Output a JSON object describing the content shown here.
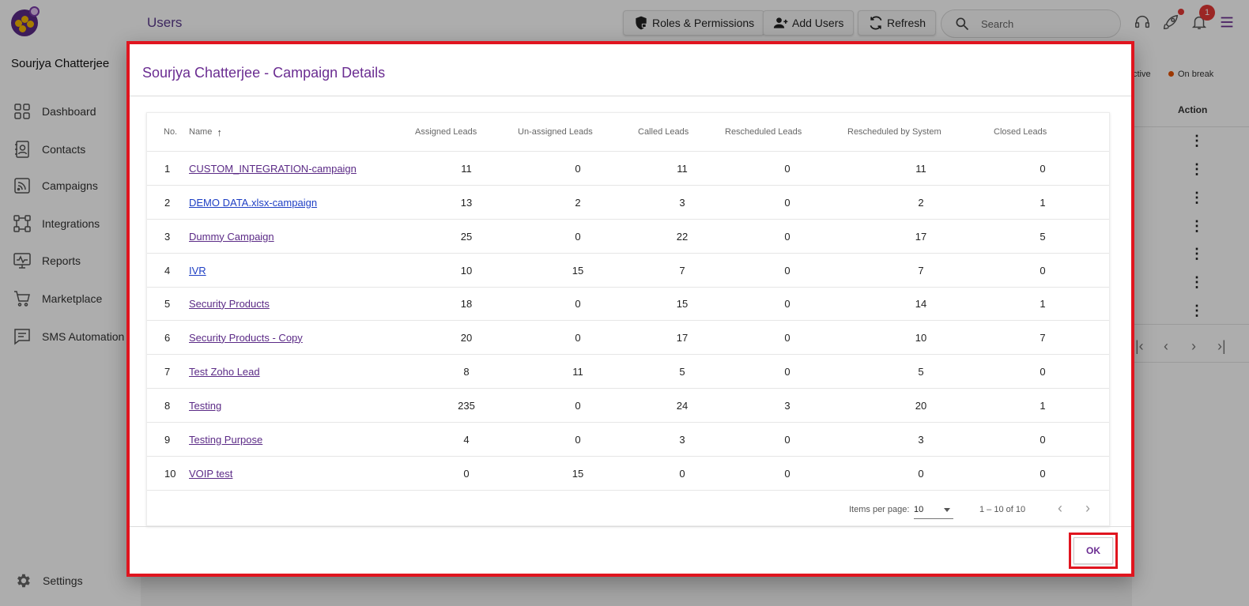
{
  "sidebar": {
    "user_name": "Sourjya Chatterjee",
    "items": [
      {
        "label": "Dashboard",
        "icon": "dashboard-icon"
      },
      {
        "label": "Contacts",
        "icon": "contacts-icon"
      },
      {
        "label": "Campaigns",
        "icon": "campaigns-icon"
      },
      {
        "label": "Integrations",
        "icon": "integrations-icon"
      },
      {
        "label": "Reports",
        "icon": "reports-icon"
      },
      {
        "label": "Marketplace",
        "icon": "cart-icon"
      },
      {
        "label": "SMS Automation",
        "icon": "sms-icon"
      }
    ],
    "settings_label": "Settings"
  },
  "header": {
    "title": "Users",
    "roles_label": "Roles & Permissions",
    "add_users_label": "Add Users",
    "refresh_label": "Refresh",
    "search_placeholder": "Search",
    "notification_count": "1"
  },
  "background": {
    "status_active": "ctive",
    "status_break": "On break",
    "action_header": "Action"
  },
  "dialog": {
    "title": "Sourjya Chatterjee - Campaign Details",
    "columns": {
      "no": "No.",
      "name": "Name",
      "assigned": "Assigned Leads",
      "unassigned": "Un-assigned Leads",
      "called": "Called Leads",
      "rescheduled": "Rescheduled Leads",
      "rescheduled_system": "Rescheduled by System",
      "closed": "Closed Leads"
    },
    "rows": [
      {
        "no": "1",
        "name": "CUSTOM_INTEGRATION-campaign",
        "assigned": "11",
        "unassigned": "0",
        "called": "11",
        "rescheduled": "0",
        "rescheduled_system": "11",
        "closed": "0"
      },
      {
        "no": "2",
        "name": "DEMO DATA.xlsx-campaign",
        "assigned": "13",
        "unassigned": "2",
        "called": "3",
        "rescheduled": "0",
        "rescheduled_system": "2",
        "closed": "1"
      },
      {
        "no": "3",
        "name": "Dummy Campaign",
        "assigned": "25",
        "unassigned": "0",
        "called": "22",
        "rescheduled": "0",
        "rescheduled_system": "17",
        "closed": "5"
      },
      {
        "no": "4",
        "name": "IVR",
        "assigned": "10",
        "unassigned": "15",
        "called": "7",
        "rescheduled": "0",
        "rescheduled_system": "7",
        "closed": "0"
      },
      {
        "no": "5",
        "name": "Security Products",
        "assigned": "18",
        "unassigned": "0",
        "called": "15",
        "rescheduled": "0",
        "rescheduled_system": "14",
        "closed": "1"
      },
      {
        "no": "6",
        "name": "Security Products - Copy",
        "assigned": "20",
        "unassigned": "0",
        "called": "17",
        "rescheduled": "0",
        "rescheduled_system": "10",
        "closed": "7"
      },
      {
        "no": "7",
        "name": "Test Zoho Lead",
        "assigned": "8",
        "unassigned": "11",
        "called": "5",
        "rescheduled": "0",
        "rescheduled_system": "5",
        "closed": "0"
      },
      {
        "no": "8",
        "name": "Testing",
        "assigned": "235",
        "unassigned": "0",
        "called": "24",
        "rescheduled": "3",
        "rescheduled_system": "20",
        "closed": "1"
      },
      {
        "no": "9",
        "name": "Testing Purpose",
        "assigned": "4",
        "unassigned": "0",
        "called": "3",
        "rescheduled": "0",
        "rescheduled_system": "3",
        "closed": "0"
      },
      {
        "no": "10",
        "name": "VOIP test",
        "assigned": "0",
        "unassigned": "15",
        "called": "0",
        "rescheduled": "0",
        "rescheduled_system": "0",
        "closed": "0"
      }
    ],
    "paginator": {
      "items_per_page_label": "Items per page:",
      "items_per_page_value": "10",
      "range_label": "1 – 10 of 10"
    },
    "ok_label": "OK"
  },
  "colors": {
    "brand_purple": "#6a2c91",
    "link_blue": "#1e3fc4",
    "highlight_red": "#e0151f"
  }
}
